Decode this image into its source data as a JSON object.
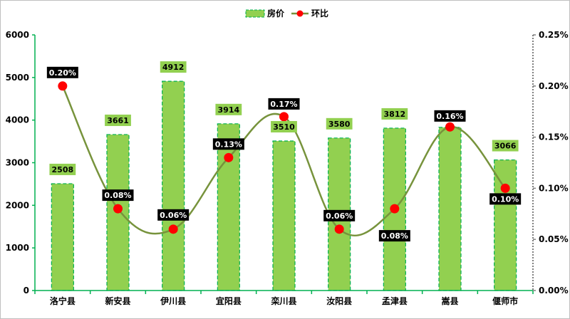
{
  "chart_data": {
    "type": "bar",
    "categories": [
      "洛宁县",
      "新安县",
      "伊川县",
      "宜阳县",
      "栾川县",
      "汝阳县",
      "孟津县",
      "嵩县",
      "偃师市"
    ],
    "series": [
      {
        "name": "房价",
        "type": "bar",
        "axis": "left",
        "values": [
          2508,
          3661,
          4912,
          3914,
          3510,
          3580,
          3812,
          3830,
          3066
        ],
        "labels": [
          "2508",
          "3661",
          "4912",
          "3914",
          "3510",
          "3580",
          "3812",
          "",
          "3066"
        ],
        "color": "#92d050",
        "border_color": "#00b050"
      },
      {
        "name": "环比",
        "type": "line",
        "axis": "right",
        "values": [
          0.2,
          0.08,
          0.06,
          0.13,
          0.17,
          0.06,
          0.08,
          0.16,
          0.1
        ],
        "labels": [
          "0.20%",
          "0.08%",
          "0.06%",
          "0.13%",
          "0.17%",
          "0.06%",
          "0.08%",
          "0.16%",
          "0.10%"
        ],
        "color": "#77933c",
        "marker_color": "#ff0000"
      }
    ],
    "y_left": {
      "ylim": [
        0,
        6000
      ],
      "ticks": [
        "0",
        "1000",
        "2000",
        "3000",
        "4000",
        "5000",
        "6000"
      ]
    },
    "y_right": {
      "ylim": [
        0,
        0.25
      ],
      "ticks": [
        "0.00%",
        "0.05%",
        "0.10%",
        "0.15%",
        "0.20%",
        "0.25%"
      ]
    },
    "grid": false,
    "legend_position": "top-center",
    "axis_color": "#00b050"
  }
}
